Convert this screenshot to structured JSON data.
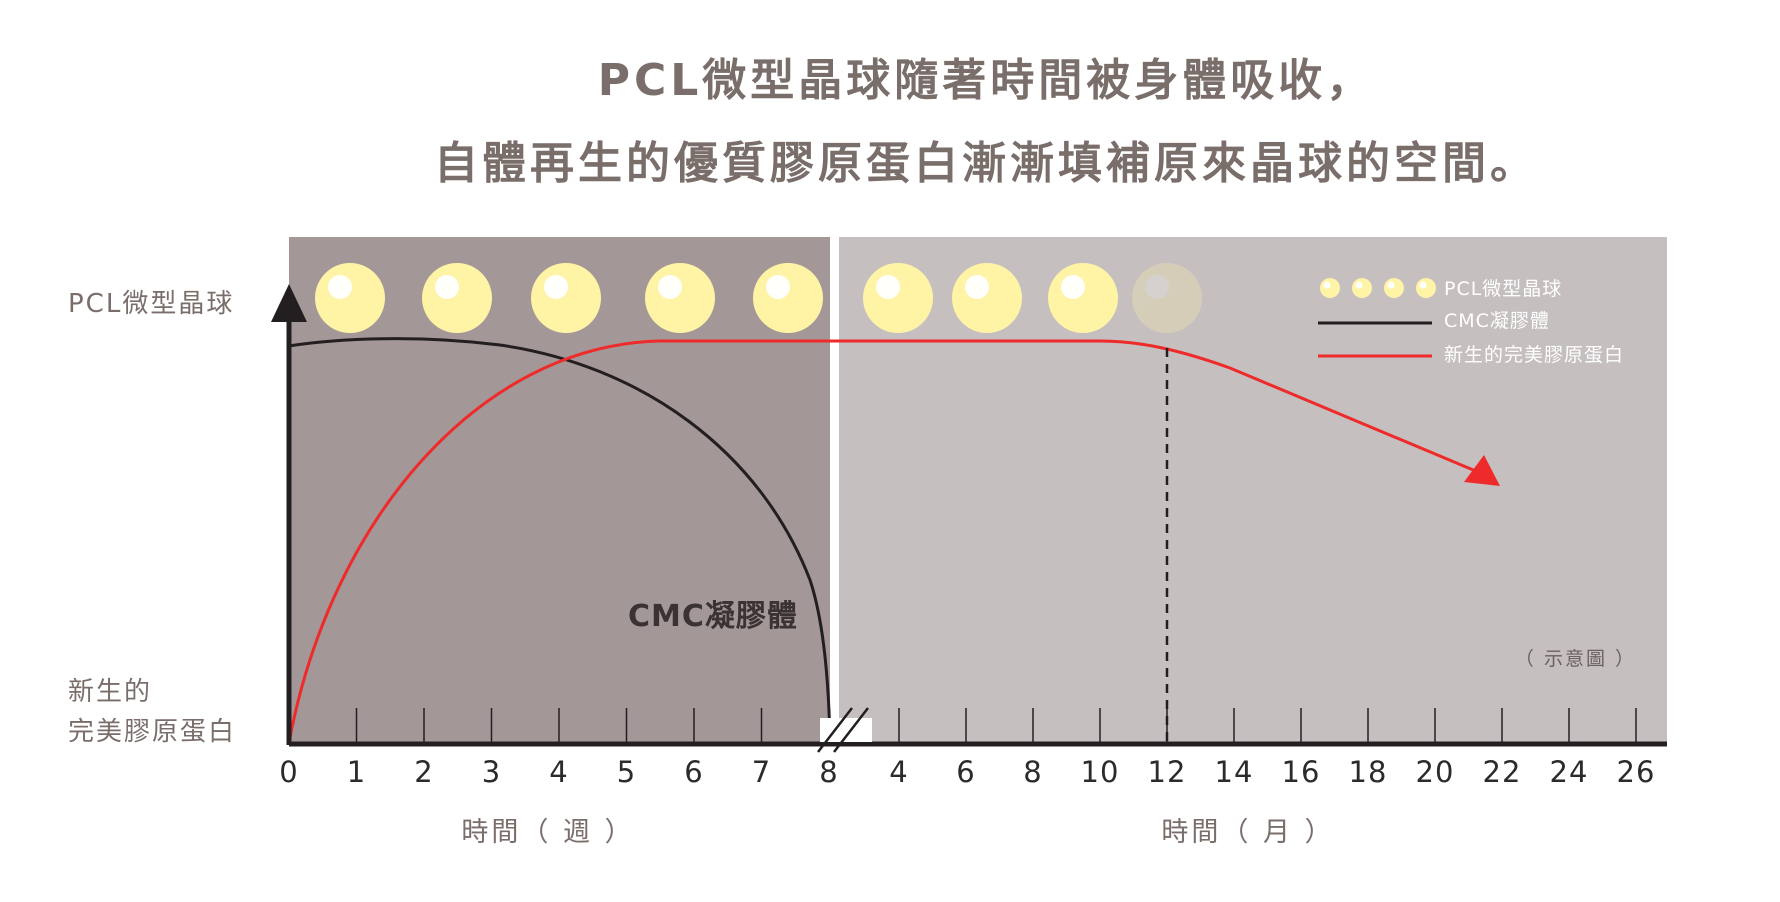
{
  "title": {
    "line1": "PCL微型晶球隨著時間被身體吸收，",
    "line2": "自體再生的優質膠原蛋白漸漸填補原來晶球的空間。"
  },
  "y_axis": {
    "top_label": "PCL微型晶球",
    "bottom_label_line1": "新生的",
    "bottom_label_line2": "完美膠原蛋白"
  },
  "x_axis": {
    "weeks_ticks": [
      "0",
      "1",
      "2",
      "3",
      "4",
      "5",
      "6",
      "7",
      "8"
    ],
    "months_ticks": [
      "4",
      "6",
      "8",
      "10",
      "12",
      "14",
      "16",
      "18",
      "20",
      "22",
      "24",
      "26"
    ],
    "weeks_label": "時間（ 週 ）",
    "months_label": "時間（ 月 ）"
  },
  "legend": {
    "spheres": "PCL微型晶球",
    "cmc": "CMC凝膠體",
    "collagen": "新生的完美膠原蛋白"
  },
  "annotations": {
    "cmc_label": "CMC凝膠體",
    "note": "（ 示意圖 ）"
  },
  "colors": {
    "panel_weeks": "#a39797",
    "panel_months": "#c5bfbf",
    "sphere": "#fff3a6",
    "cmc_line": "#231f20",
    "collagen_line": "#ee2a2a"
  },
  "spheres": {
    "count": 9,
    "faded_index": 8
  },
  "marker": {
    "x_month": 12
  }
}
